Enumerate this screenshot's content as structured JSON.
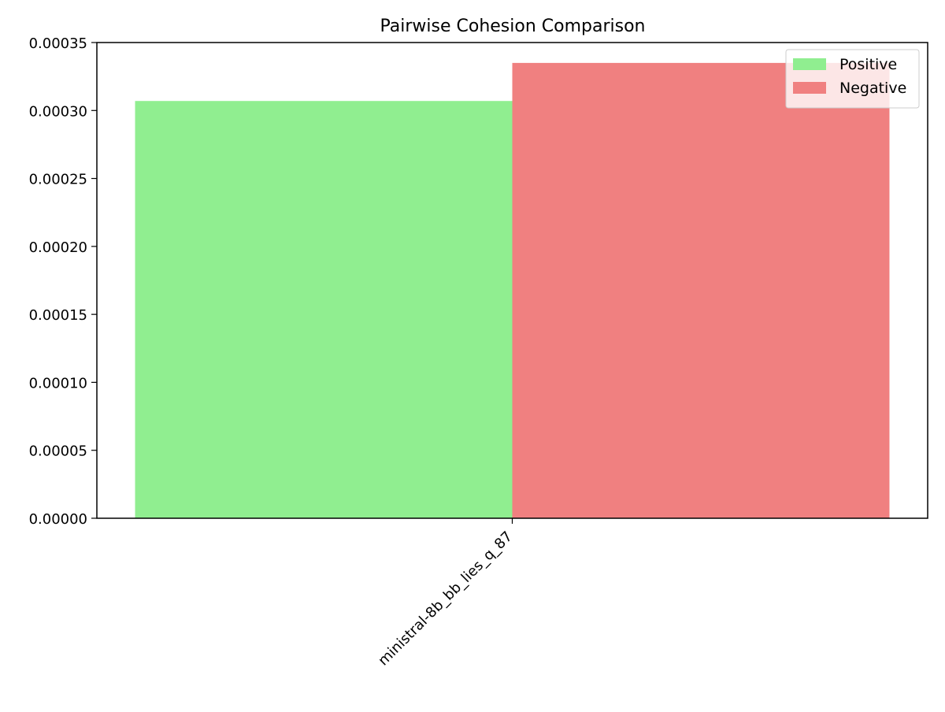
{
  "chart_data": {
    "type": "bar",
    "title": "Pairwise Cohesion Comparison",
    "xlabel": "",
    "ylabel": "",
    "categories": [
      "ministral-8b_bb_lies_q_87"
    ],
    "series": [
      {
        "name": "Positive",
        "values": [
          0.000307
        ],
        "color": "#90ee90"
      },
      {
        "name": "Negative",
        "values": [
          0.000335
        ],
        "color": "#f08080"
      }
    ],
    "ylim": [
      0,
      0.00035
    ],
    "yticks": [
      "0.00000",
      "0.00005",
      "0.00010",
      "0.00015",
      "0.00020",
      "0.00025",
      "0.00030",
      "0.00035"
    ],
    "grid": false,
    "legend_position": "top-right"
  }
}
